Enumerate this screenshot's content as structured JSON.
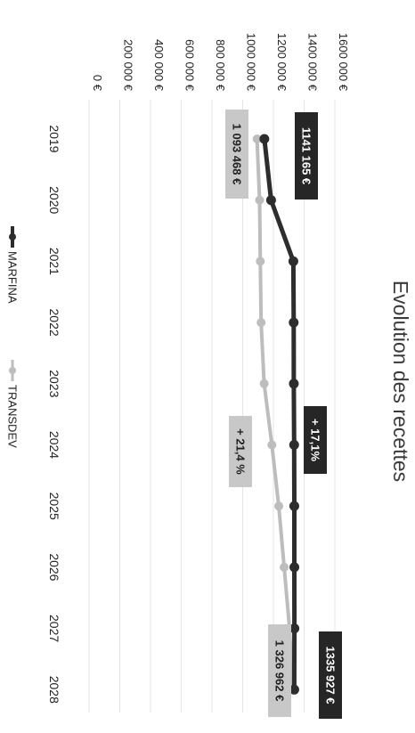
{
  "chart_data": {
    "type": "line",
    "title": "Evolution des recettes",
    "categories": [
      "2019",
      "2020",
      "2021",
      "2022",
      "2023",
      "2024",
      "2025",
      "2026",
      "2027",
      "2028"
    ],
    "series": [
      {
        "name": "MARFINA",
        "color": "#2d2d2d",
        "values": [
          1141165,
          1185000,
          1330000,
          1332000,
          1333000,
          1335000,
          1336000,
          1336500,
          1337000,
          1335927
        ]
      },
      {
        "name": "TRANSDEV",
        "color": "#bdbdbd",
        "values": [
          1093468,
          1110000,
          1115000,
          1120000,
          1140000,
          1190000,
          1235000,
          1270000,
          1305000,
          1326962
        ]
      }
    ],
    "yticks": [
      "0 €",
      "200 000 €",
      "400 000 €",
      "600 000 €",
      "800 000 €",
      "1000 000 €",
      "1200 000 €",
      "1400 000 €",
      "1600 000 €"
    ],
    "ylim": [
      0,
      1600000
    ],
    "grid": true,
    "legend": "bottom",
    "annotations": [
      {
        "text": "1141 165 €",
        "series": 0,
        "index": 0,
        "style": "dark"
      },
      {
        "text": "1 093 468 €",
        "series": 1,
        "index": 0,
        "style": "light"
      },
      {
        "text": "+ 17,1%",
        "series": 0,
        "index": 4.5,
        "style": "dark"
      },
      {
        "text": "+ 21,4 %",
        "series": 1,
        "index": 4.5,
        "style": "light"
      },
      {
        "text": "1335 927 €",
        "series": 0,
        "index": 9,
        "style": "dark"
      },
      {
        "text": "1 326 962 €",
        "series": 1,
        "index": 9,
        "style": "light"
      }
    ]
  }
}
